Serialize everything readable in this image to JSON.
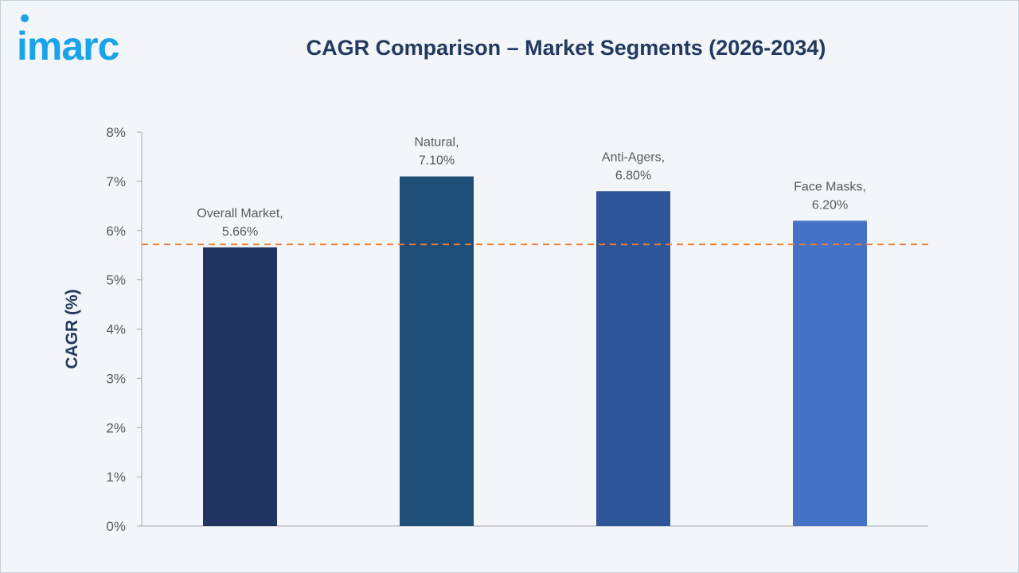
{
  "logo": {
    "text": "imarc",
    "color": "#1aa3e8"
  },
  "chart_data": {
    "type": "bar",
    "title": "CAGR Comparison – Market Segments (2026-2034)",
    "ylabel": "CAGR (%)",
    "xlabel": "",
    "categories": [
      "Overall Market",
      "Natural",
      "Anti-Agers",
      "Face Masks"
    ],
    "values": [
      5.66,
      7.1,
      6.8,
      6.2
    ],
    "data_labels": [
      [
        "Overall Market,",
        "5.66%"
      ],
      [
        "Natural,",
        "7.10%"
      ],
      [
        "Anti-Agers,",
        "6.80%"
      ],
      [
        "Face Masks,",
        "6.20%"
      ]
    ],
    "bar_colors": [
      "#1f3560",
      "#1f4e79",
      "#2e5597",
      "#4472c4"
    ],
    "ylim": [
      0,
      8
    ],
    "yticks": [
      0,
      1,
      2,
      3,
      4,
      5,
      6,
      7,
      8
    ],
    "ytick_labels": [
      "0%",
      "1%",
      "2%",
      "3%",
      "4%",
      "5%",
      "6%",
      "7%",
      "8%"
    ],
    "reference_line": {
      "value": 5.72,
      "style": "dashed",
      "color": "#ed7d31"
    },
    "grid": false,
    "legend": "none"
  }
}
